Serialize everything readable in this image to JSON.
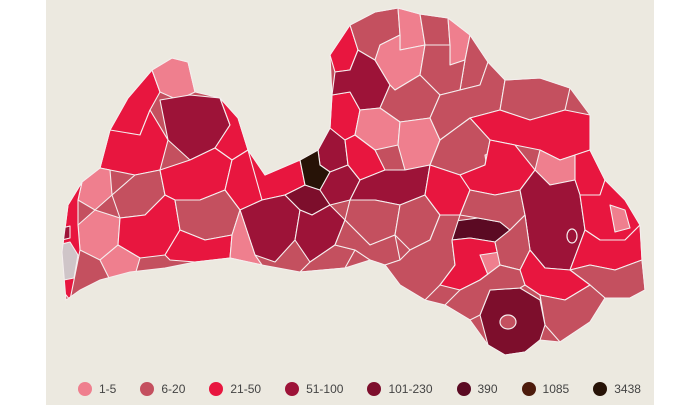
{
  "legend": {
    "items": [
      {
        "label": "1-5",
        "color": "#ef7f8e"
      },
      {
        "label": "6-20",
        "color": "#c4505f"
      },
      {
        "label": "21-50",
        "color": "#e8163f"
      },
      {
        "label": "51-100",
        "color": "#9d1338"
      },
      {
        "label": "101-230",
        "color": "#7d0e2c"
      },
      {
        "label": "390",
        "color": "#5b0a23"
      },
      {
        "label": "1085",
        "color": "#4d1b0c"
      },
      {
        "label": "3438",
        "color": "#271307"
      }
    ]
  },
  "map": {
    "background": "#ece9e0",
    "nodata_color": "#cfc5c8"
  }
}
